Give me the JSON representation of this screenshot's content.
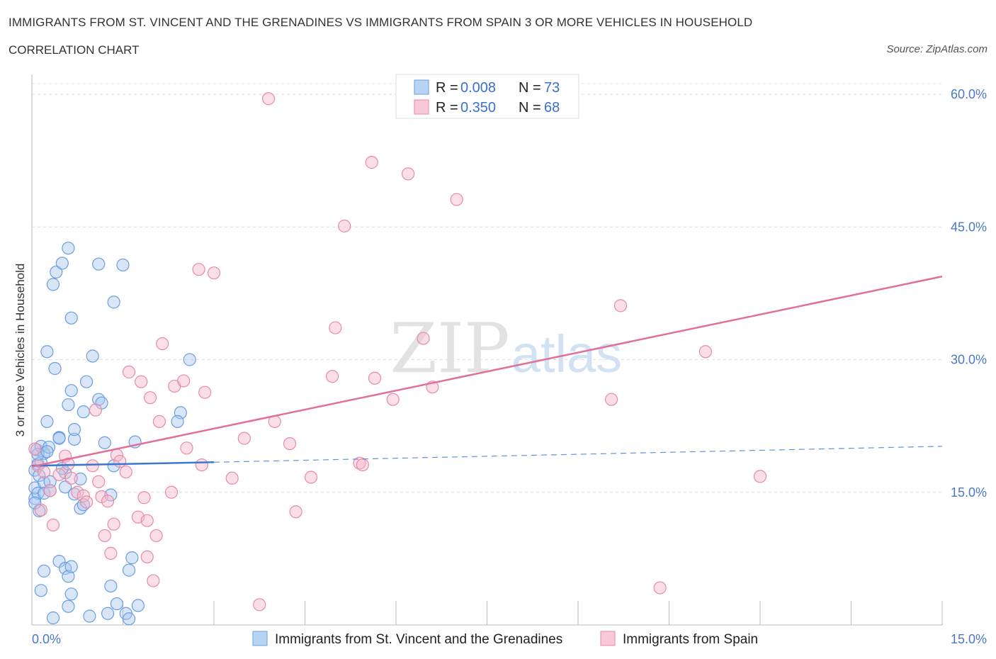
{
  "header": {
    "title": "IMMIGRANTS FROM ST. VINCENT AND THE GRENADINES VS IMMIGRANTS FROM SPAIN 3 OR MORE VEHICLES IN HOUSEHOLD",
    "subtitle": "CORRELATION CHART",
    "source": "Source: ZipAtlas.com"
  },
  "watermark": {
    "zip": "ZIP",
    "atlas": "atlas"
  },
  "legend": {
    "r_label": "R =",
    "n_label": "N =",
    "items": [
      {
        "r": "0.008",
        "n": "73"
      },
      {
        "r": "0.350",
        "n": "68"
      }
    ]
  },
  "chart_data": {
    "type": "scatter",
    "title": "IMMIGRANTS FROM ST. VINCENT AND THE GRENADINES VS IMMIGRANTS FROM SPAIN 3 OR MORE VEHICLES IN HOUSEHOLD",
    "subtitle": "CORRELATION CHART",
    "ylabel": "3 or more Vehicles in Household",
    "xlim": [
      0,
      15
    ],
    "ylim": [
      0,
      60
    ],
    "x_tick_labels": [
      "0.0%",
      "15.0%"
    ],
    "y_tick_labels": [
      "15.0%",
      "30.0%",
      "45.0%",
      "60.0%"
    ],
    "y_ticks": [
      15,
      30,
      45,
      60
    ],
    "grid": true,
    "legend_position": "top-center",
    "colors": {
      "blue_fill": "#a8c8f0",
      "blue_stroke": "#6a9ee0",
      "pink_fill": "#f5b8cc",
      "pink_stroke": "#e88aa8",
      "blue_line": "#3a78d0",
      "pink_line": "#e0709a"
    },
    "series": [
      {
        "name": "Immigrants from St. Vincent and the Grenadines",
        "color": "#6a9ee0",
        "trend": {
          "from": [
            0,
            18.0
          ],
          "to": [
            3.0,
            18.4
          ],
          "dashed_to": [
            15,
            20.2
          ]
        },
        "points": [
          [
            0.05,
            17.5
          ],
          [
            0.05,
            14.3
          ],
          [
            0.05,
            15.5
          ],
          [
            0.08,
            19.8
          ],
          [
            0.1,
            18.2
          ],
          [
            0.1,
            14.9
          ],
          [
            0.12,
            16.9
          ],
          [
            0.12,
            12.9
          ],
          [
            0.15,
            20.2
          ],
          [
            0.2,
            19.4
          ],
          [
            0.2,
            16.1
          ],
          [
            0.2,
            14.9
          ],
          [
            0.25,
            23.0
          ],
          [
            0.25,
            30.9
          ],
          [
            0.28,
            20.1
          ],
          [
            0.3,
            15.2
          ],
          [
            0.35,
            38.5
          ],
          [
            0.38,
            29.0
          ],
          [
            0.4,
            39.9
          ],
          [
            0.45,
            21.2
          ],
          [
            0.45,
            21.1
          ],
          [
            0.5,
            40.9
          ],
          [
            0.55,
            15.6
          ],
          [
            0.55,
            17.2
          ],
          [
            0.6,
            42.6
          ],
          [
            0.6,
            24.9
          ],
          [
            0.65,
            34.7
          ],
          [
            0.65,
            26.5
          ],
          [
            0.7,
            21.0
          ],
          [
            0.7,
            22.1
          ],
          [
            0.8,
            16.5
          ],
          [
            0.8,
            13.2
          ],
          [
            0.85,
            24.1
          ],
          [
            0.9,
            27.5
          ],
          [
            1.0,
            30.4
          ],
          [
            1.1,
            25.5
          ],
          [
            1.15,
            25.1
          ],
          [
            1.2,
            20.6
          ],
          [
            1.3,
            14.7
          ],
          [
            1.35,
            18.0
          ],
          [
            1.35,
            36.5
          ],
          [
            1.5,
            40.7
          ],
          [
            1.1,
            40.8
          ],
          [
            1.7,
            20.7
          ],
          [
            2.45,
            24.0
          ],
          [
            2.6,
            30.0
          ],
          [
            2.4,
            23.0
          ],
          [
            0.5,
            17.7
          ],
          [
            0.3,
            16.2
          ],
          [
            0.7,
            14.8
          ],
          [
            0.2,
            6.1
          ],
          [
            0.15,
            3.9
          ],
          [
            0.45,
            7.2
          ],
          [
            0.55,
            6.4
          ],
          [
            0.6,
            5.5
          ],
          [
            0.6,
            2.1
          ],
          [
            0.65,
            6.6
          ],
          [
            0.65,
            3.5
          ],
          [
            0.35,
            0.8
          ],
          [
            0.95,
            1.0
          ],
          [
            1.25,
            1.3
          ],
          [
            1.3,
            4.4
          ],
          [
            1.4,
            2.4
          ],
          [
            1.55,
            1.3
          ],
          [
            1.6,
            0.7
          ],
          [
            1.6,
            6.2
          ],
          [
            1.65,
            7.6
          ],
          [
            1.75,
            2.2
          ],
          [
            0.15,
            18.4
          ],
          [
            0.1,
            19.3
          ],
          [
            0.05,
            13.8
          ],
          [
            0.25,
            19.6
          ],
          [
            0.85,
            13.6
          ]
        ]
      },
      {
        "name": "Immigrants from Spain",
        "color": "#e88aa8",
        "trend": {
          "from": [
            0,
            17.9
          ],
          "to": [
            15,
            39.4
          ]
        },
        "points": [
          [
            0.05,
            19.9
          ],
          [
            0.1,
            18.0
          ],
          [
            0.15,
            13.0
          ],
          [
            0.2,
            17.3
          ],
          [
            0.3,
            15.2
          ],
          [
            0.35,
            11.3
          ],
          [
            0.45,
            17.0
          ],
          [
            0.55,
            19.1
          ],
          [
            0.6,
            18.2
          ],
          [
            0.65,
            16.6
          ],
          [
            0.75,
            15.0
          ],
          [
            0.85,
            14.6
          ],
          [
            0.9,
            13.9
          ],
          [
            1.05,
            24.3
          ],
          [
            1.1,
            16.2
          ],
          [
            1.15,
            14.5
          ],
          [
            1.2,
            10.1
          ],
          [
            1.25,
            14.0
          ],
          [
            1.3,
            8.1
          ],
          [
            1.35,
            11.4
          ],
          [
            1.4,
            19.2
          ],
          [
            1.45,
            18.5
          ],
          [
            1.55,
            17.3
          ],
          [
            1.6,
            28.6
          ],
          [
            1.75,
            12.2
          ],
          [
            1.8,
            27.5
          ],
          [
            1.85,
            14.4
          ],
          [
            1.9,
            11.8
          ],
          [
            1.95,
            25.7
          ],
          [
            2.0,
            5.0
          ],
          [
            2.05,
            10.1
          ],
          [
            2.1,
            23.0
          ],
          [
            2.15,
            31.8
          ],
          [
            2.3,
            15.0
          ],
          [
            2.35,
            27.0
          ],
          [
            2.5,
            27.6
          ],
          [
            2.55,
            20.0
          ],
          [
            2.8,
            18.1
          ],
          [
            2.85,
            26.3
          ],
          [
            2.75,
            40.2
          ],
          [
            3.0,
            39.8
          ],
          [
            3.3,
            16.6
          ],
          [
            3.5,
            21.1
          ],
          [
            3.75,
            2.3
          ],
          [
            3.9,
            59.5
          ],
          [
            4.0,
            23.0
          ],
          [
            4.25,
            20.5
          ],
          [
            4.35,
            12.8
          ],
          [
            4.6,
            16.7
          ],
          [
            4.95,
            28.1
          ],
          [
            5.0,
            33.6
          ],
          [
            5.15,
            45.1
          ],
          [
            5.4,
            18.3
          ],
          [
            5.6,
            52.3
          ],
          [
            5.65,
            27.9
          ],
          [
            5.95,
            25.5
          ],
          [
            6.2,
            51.0
          ],
          [
            6.45,
            32.4
          ],
          [
            6.6,
            26.9
          ],
          [
            7.0,
            48.1
          ],
          [
            9.55,
            25.5
          ],
          [
            9.7,
            36.1
          ],
          [
            10.35,
            4.2
          ],
          [
            11.1,
            30.9
          ],
          [
            12.0,
            16.8
          ],
          [
            5.45,
            18.1
          ],
          [
            1.9,
            7.7
          ],
          [
            1.0,
            18.0
          ]
        ]
      }
    ]
  },
  "bottom_legend": [
    {
      "label": "Immigrants from St. Vincent and the Grenadines"
    },
    {
      "label": "Immigrants from Spain"
    }
  ]
}
